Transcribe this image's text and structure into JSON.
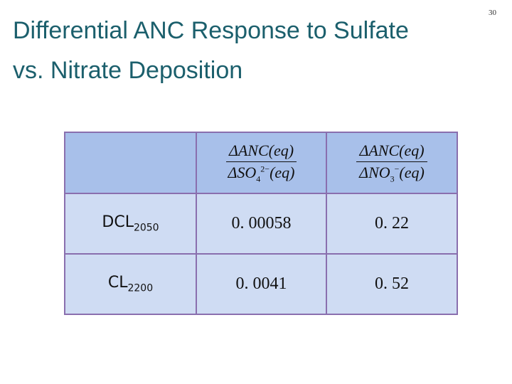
{
  "page_number": "30",
  "title": [
    "Differential ANC Response to Sulfate",
    "vs. Nitrate Deposition"
  ],
  "table": {
    "header": [
      {
        "numerator": "ΔANC(eq)",
        "denominator": {
          "base": "ΔSO",
          "sub": "4",
          "sup": "2−",
          "tail": "(eq)"
        }
      },
      {
        "numerator": "ΔANC(eq)",
        "denominator": {
          "base": "ΔNO",
          "sub": "3",
          "sup": "−",
          "tail": "(eq)"
        }
      }
    ],
    "rows": [
      {
        "label": {
          "base": "DCL",
          "sub": "2050"
        },
        "cells": [
          "0. 00058",
          "0. 22"
        ]
      },
      {
        "label": {
          "base": "CL",
          "sub": "2200"
        },
        "cells": [
          "0. 0041",
          "0. 52"
        ]
      }
    ]
  }
}
